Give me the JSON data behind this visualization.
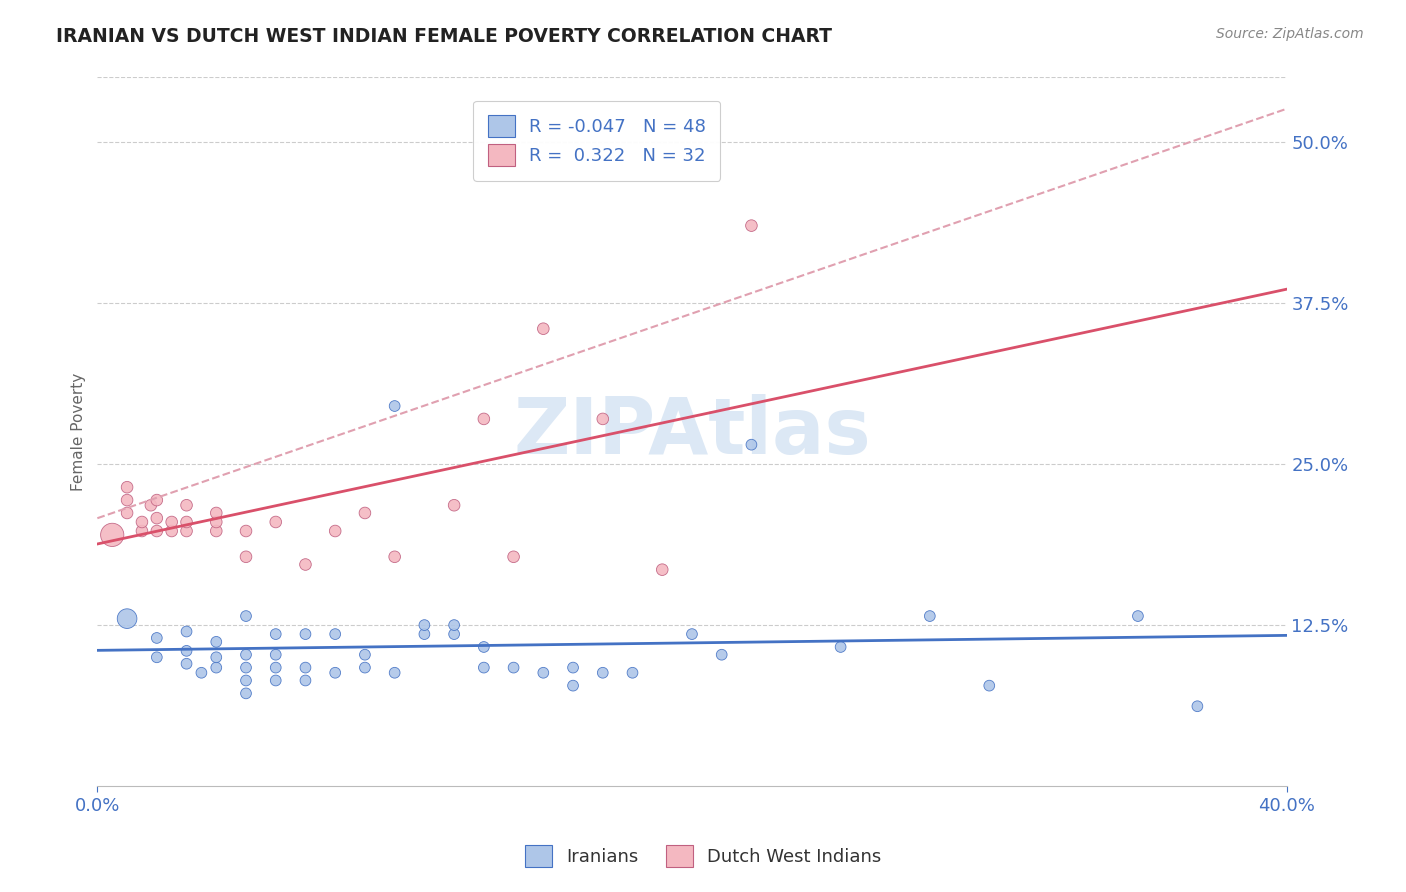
{
  "title": "IRANIAN VS DUTCH WEST INDIAN FEMALE POVERTY CORRELATION CHART",
  "source": "Source: ZipAtlas.com",
  "ylabel": "Female Poverty",
  "ytick_vals": [
    0.125,
    0.25,
    0.375,
    0.5
  ],
  "ytick_labels": [
    "12.5%",
    "25.0%",
    "37.5%",
    "50.0%"
  ],
  "xlim": [
    0.0,
    0.4
  ],
  "ylim": [
    0.0,
    0.55
  ],
  "xtick_vals": [
    0.0,
    0.4
  ],
  "xtick_labels": [
    "0.0%",
    "40.0%"
  ],
  "iranian_color": "#aec6e8",
  "iranian_edge_color": "#4472c4",
  "dutch_color": "#f4b8c1",
  "dutch_edge_color": "#c06080",
  "iranian_line_color": "#4472c4",
  "dutch_line_color": "#d9506a",
  "dutch_dash_color": "#e0a0b0",
  "axis_label_color": "#4472c4",
  "tick_color": "#4472c4",
  "grid_color": "#cccccc",
  "background_color": "#ffffff",
  "title_color": "#222222",
  "watermark_color": "#dce8f5",
  "iranian_R": -0.047,
  "dutch_R": 0.322,
  "iranian_N": 48,
  "dutch_N": 32,
  "iranian_points": [
    [
      0.01,
      0.13
    ],
    [
      0.02,
      0.115
    ],
    [
      0.02,
      0.1
    ],
    [
      0.03,
      0.095
    ],
    [
      0.03,
      0.105
    ],
    [
      0.03,
      0.12
    ],
    [
      0.035,
      0.088
    ],
    [
      0.04,
      0.092
    ],
    [
      0.04,
      0.1
    ],
    [
      0.04,
      0.112
    ],
    [
      0.05,
      0.072
    ],
    [
      0.05,
      0.082
    ],
    [
      0.05,
      0.092
    ],
    [
      0.05,
      0.102
    ],
    [
      0.05,
      0.132
    ],
    [
      0.06,
      0.082
    ],
    [
      0.06,
      0.092
    ],
    [
      0.06,
      0.102
    ],
    [
      0.06,
      0.118
    ],
    [
      0.07,
      0.082
    ],
    [
      0.07,
      0.092
    ],
    [
      0.07,
      0.118
    ],
    [
      0.08,
      0.088
    ],
    [
      0.08,
      0.118
    ],
    [
      0.09,
      0.092
    ],
    [
      0.09,
      0.102
    ],
    [
      0.1,
      0.088
    ],
    [
      0.1,
      0.295
    ],
    [
      0.11,
      0.118
    ],
    [
      0.11,
      0.125
    ],
    [
      0.12,
      0.118
    ],
    [
      0.12,
      0.125
    ],
    [
      0.13,
      0.092
    ],
    [
      0.13,
      0.108
    ],
    [
      0.14,
      0.092
    ],
    [
      0.15,
      0.088
    ],
    [
      0.16,
      0.078
    ],
    [
      0.16,
      0.092
    ],
    [
      0.17,
      0.088
    ],
    [
      0.18,
      0.088
    ],
    [
      0.2,
      0.118
    ],
    [
      0.21,
      0.102
    ],
    [
      0.22,
      0.265
    ],
    [
      0.25,
      0.108
    ],
    [
      0.28,
      0.132
    ],
    [
      0.3,
      0.078
    ],
    [
      0.35,
      0.132
    ],
    [
      0.37,
      0.062
    ]
  ],
  "iranian_sizes": [
    200,
    60,
    60,
    60,
    60,
    60,
    60,
    60,
    60,
    60,
    60,
    60,
    60,
    60,
    60,
    60,
    60,
    60,
    60,
    60,
    60,
    60,
    60,
    60,
    60,
    60,
    60,
    60,
    60,
    60,
    60,
    60,
    60,
    60,
    60,
    60,
    60,
    60,
    60,
    60,
    60,
    60,
    60,
    60,
    60,
    60,
    60,
    60
  ],
  "dutch_points": [
    [
      0.005,
      0.195
    ],
    [
      0.01,
      0.212
    ],
    [
      0.01,
      0.222
    ],
    [
      0.01,
      0.232
    ],
    [
      0.015,
      0.198
    ],
    [
      0.015,
      0.205
    ],
    [
      0.018,
      0.218
    ],
    [
      0.02,
      0.198
    ],
    [
      0.02,
      0.208
    ],
    [
      0.02,
      0.222
    ],
    [
      0.025,
      0.198
    ],
    [
      0.025,
      0.205
    ],
    [
      0.03,
      0.198
    ],
    [
      0.03,
      0.205
    ],
    [
      0.03,
      0.218
    ],
    [
      0.04,
      0.198
    ],
    [
      0.04,
      0.205
    ],
    [
      0.04,
      0.212
    ],
    [
      0.05,
      0.178
    ],
    [
      0.05,
      0.198
    ],
    [
      0.06,
      0.205
    ],
    [
      0.07,
      0.172
    ],
    [
      0.08,
      0.198
    ],
    [
      0.09,
      0.212
    ],
    [
      0.1,
      0.178
    ],
    [
      0.12,
      0.218
    ],
    [
      0.13,
      0.285
    ],
    [
      0.14,
      0.178
    ],
    [
      0.15,
      0.355
    ],
    [
      0.17,
      0.285
    ],
    [
      0.19,
      0.168
    ],
    [
      0.22,
      0.435
    ]
  ],
  "dutch_sizes": [
    280,
    70,
    70,
    70,
    70,
    70,
    70,
    70,
    70,
    70,
    70,
    70,
    70,
    70,
    70,
    70,
    70,
    70,
    70,
    70,
    70,
    70,
    70,
    70,
    70,
    70,
    70,
    70,
    70,
    70,
    70,
    70
  ]
}
